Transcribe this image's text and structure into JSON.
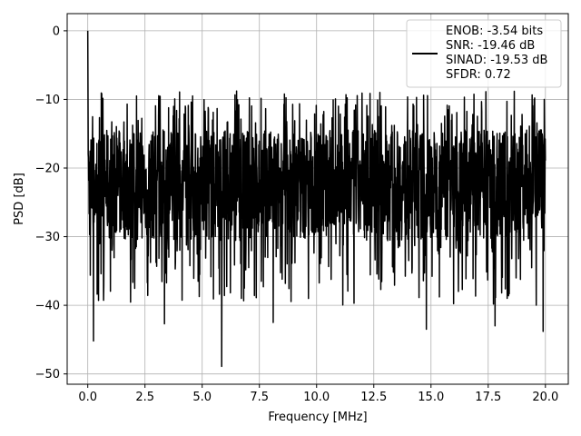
{
  "chart_data": {
    "type": "line",
    "title": "",
    "xlabel": "Frequency [MHz]",
    "ylabel": "PSD [dB]",
    "xlim": [
      -0.9,
      21.0
    ],
    "ylim": [
      -51.5,
      2.5
    ],
    "x_ticks": [
      0.0,
      2.5,
      5.0,
      7.5,
      10.0,
      12.5,
      15.0,
      17.5,
      20.0
    ],
    "x_tick_labels": [
      "0.0",
      "2.5",
      "5.0",
      "7.5",
      "10.0",
      "12.5",
      "15.0",
      "17.5",
      "20.0"
    ],
    "y_ticks": [
      0,
      -10,
      -20,
      -30,
      -40,
      -50
    ],
    "y_tick_labels": [
      "0",
      "−10",
      "−20",
      "−30",
      "−40",
      "−50"
    ],
    "grid": true,
    "legend_position": "upper-right",
    "series": [
      {
        "name": "ENOB: -3.54 bits\nSNR: -19.46 dB\nSINAD: -19.53 dB\nSFDR: 0.72",
        "color": "#000000",
        "description": "noise-floor PSD, approx 2000 bins from 0 to 20 MHz",
        "x_range": [
          0.0,
          20.0
        ],
        "n_points": 2000,
        "peak": {
          "x": 0.0,
          "y": 0.0
        },
        "notable_minima": [
          {
            "x": 0.25,
            "y": -45.2
          },
          {
            "x": 3.35,
            "y": -42.7
          },
          {
            "x": 5.85,
            "y": -48.9
          },
          {
            "x": 8.1,
            "y": -42.5
          },
          {
            "x": 14.8,
            "y": -43.5
          },
          {
            "x": 17.8,
            "y": -43.0
          },
          {
            "x": 19.9,
            "y": -43.8
          }
        ],
        "typical_upper": -14.0,
        "typical_lower": -31.0,
        "max_excursion": -8.6
      }
    ]
  }
}
